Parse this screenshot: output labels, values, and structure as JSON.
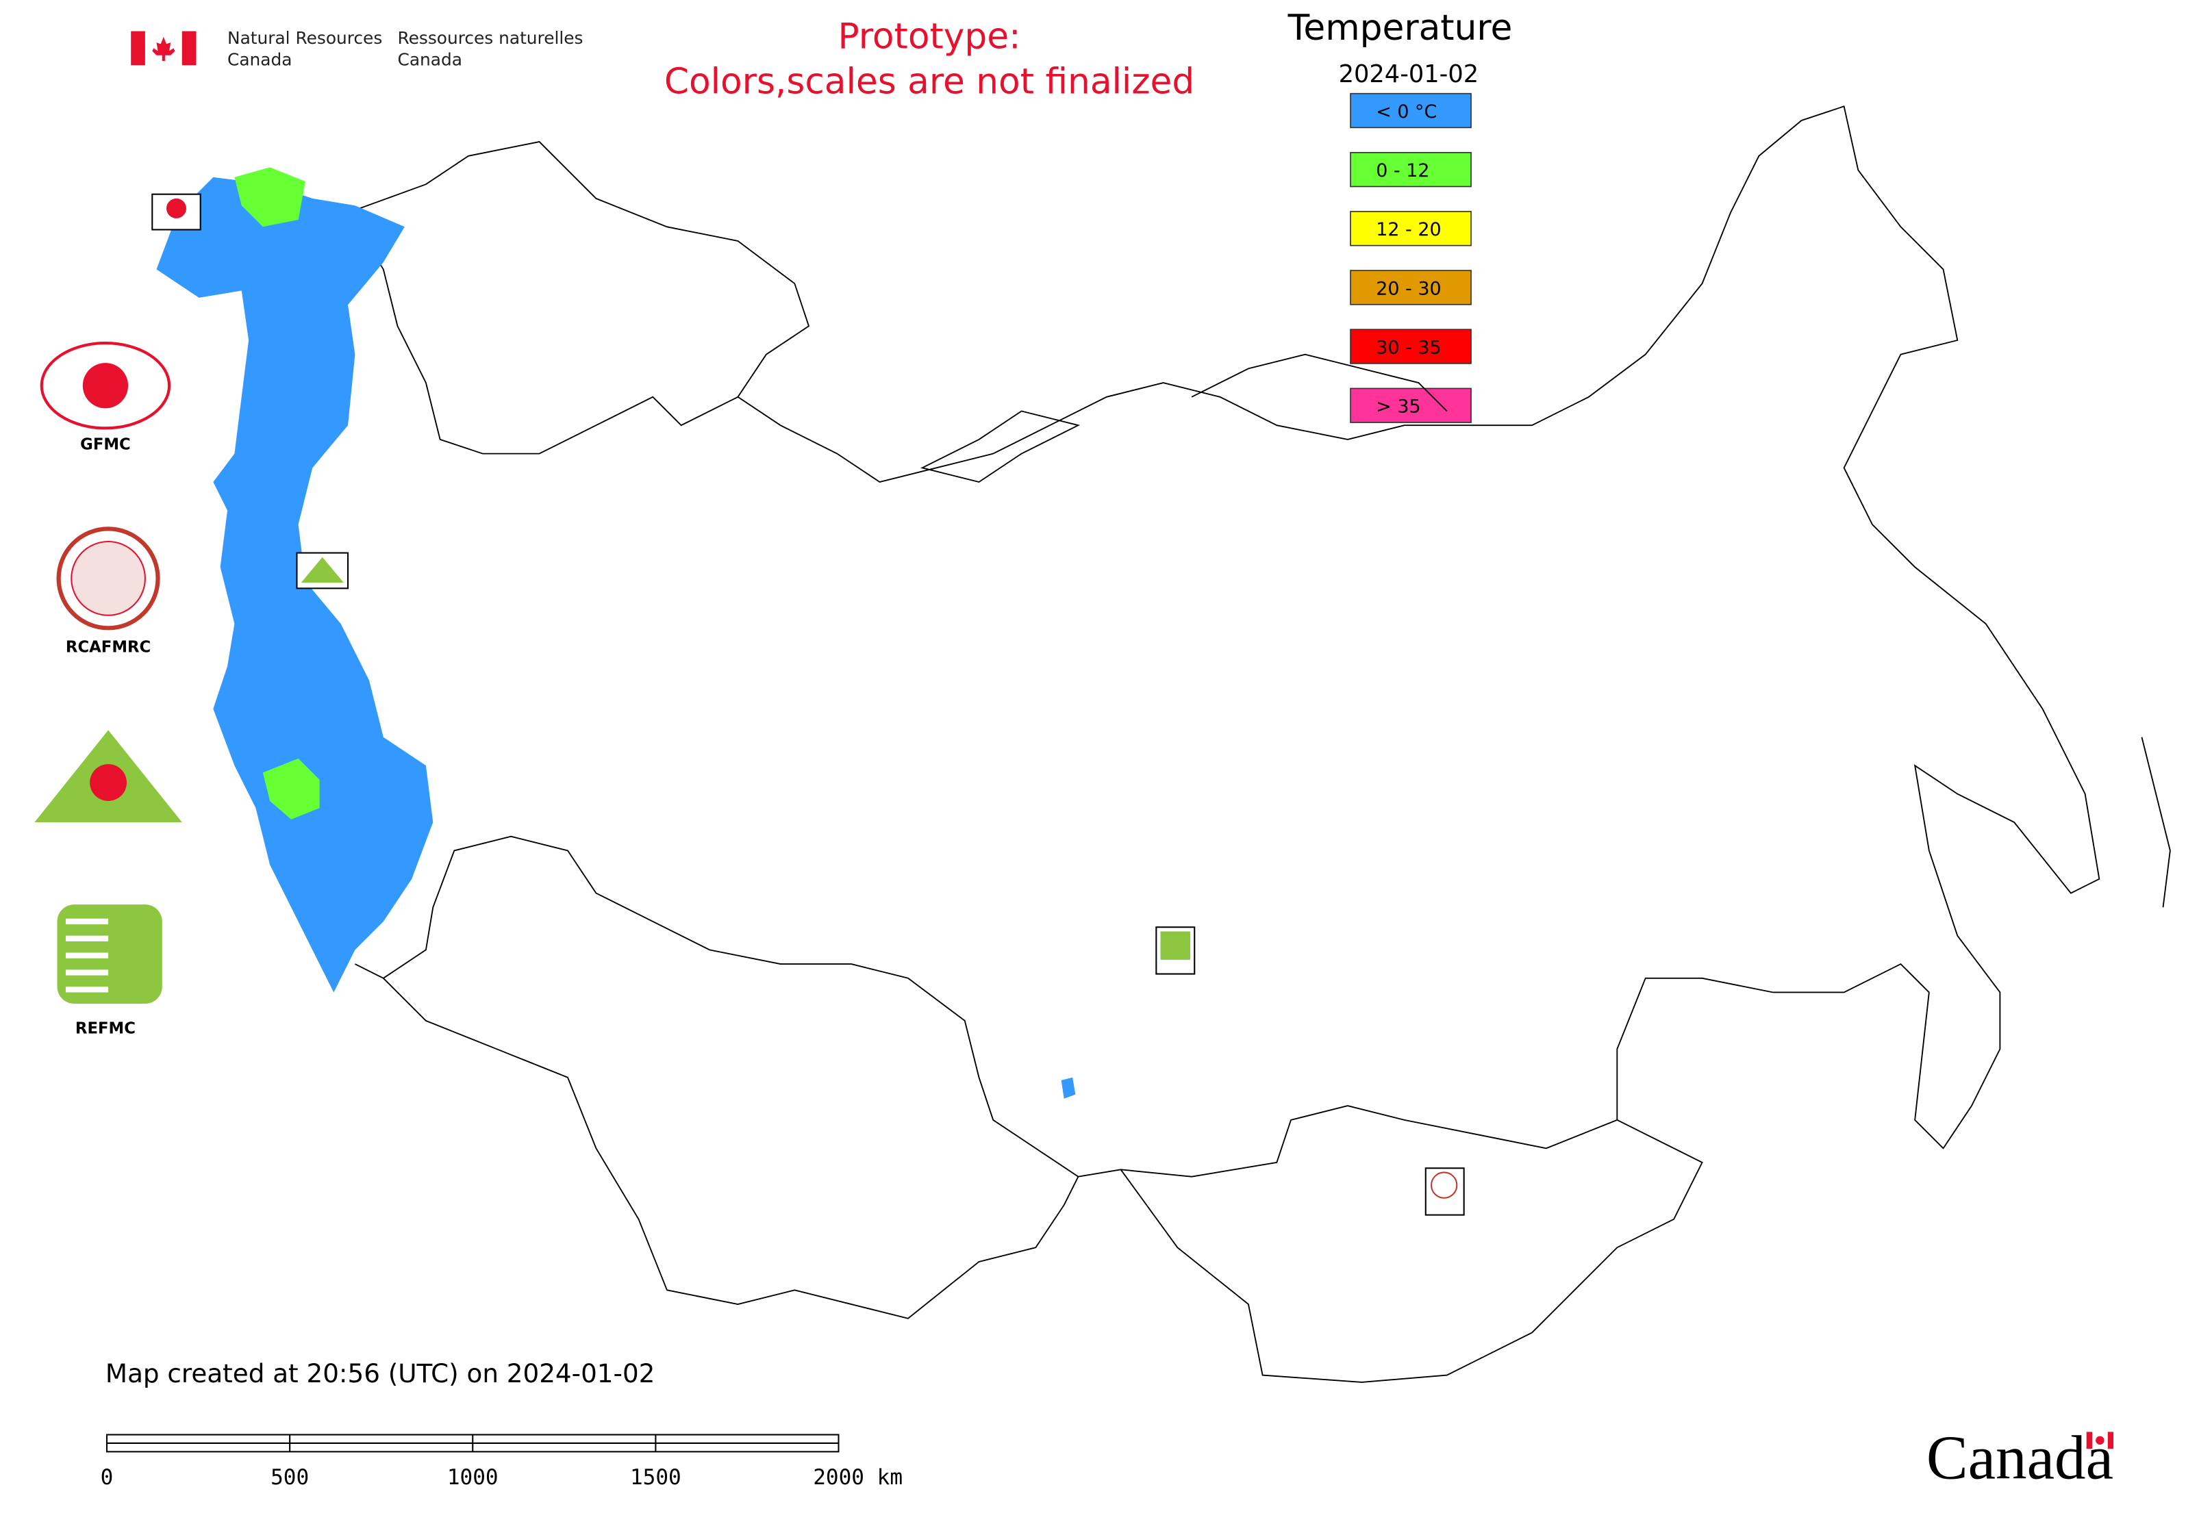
{
  "header": {
    "department_en_line1": "Natural Resources",
    "department_en_line2": "Canada",
    "department_fr_line1": "Ressources naturelles",
    "department_fr_line2": "Canada"
  },
  "notice": {
    "line1": "Prototype:",
    "line2": "Colors,scales are not finalized"
  },
  "legend": {
    "title": "Temperature",
    "date": "2024-01-02",
    "items": [
      {
        "label": "< 0 °C",
        "color": "#3399ff"
      },
      {
        "label": "0 - 12",
        "color": "#66ff33"
      },
      {
        "label": "12 - 20",
        "color": "#ffff00"
      },
      {
        "label": "20 - 30",
        "color": "#e09a00"
      },
      {
        "label": "30 - 35",
        "color": "#ff0000"
      },
      {
        "label": "> 35",
        "color": "#ff3399"
      }
    ]
  },
  "logos": [
    {
      "label": "GFMC"
    },
    {
      "label": "RCAFMRC"
    },
    {
      "label": "REFMC"
    }
  ],
  "footer": {
    "created": "Map created at 20:56 (UTC) on 2024-01-02",
    "scale_labels": [
      "0",
      "500",
      "1000",
      "1500",
      "2000 km"
    ],
    "wordmark": "Canada"
  }
}
